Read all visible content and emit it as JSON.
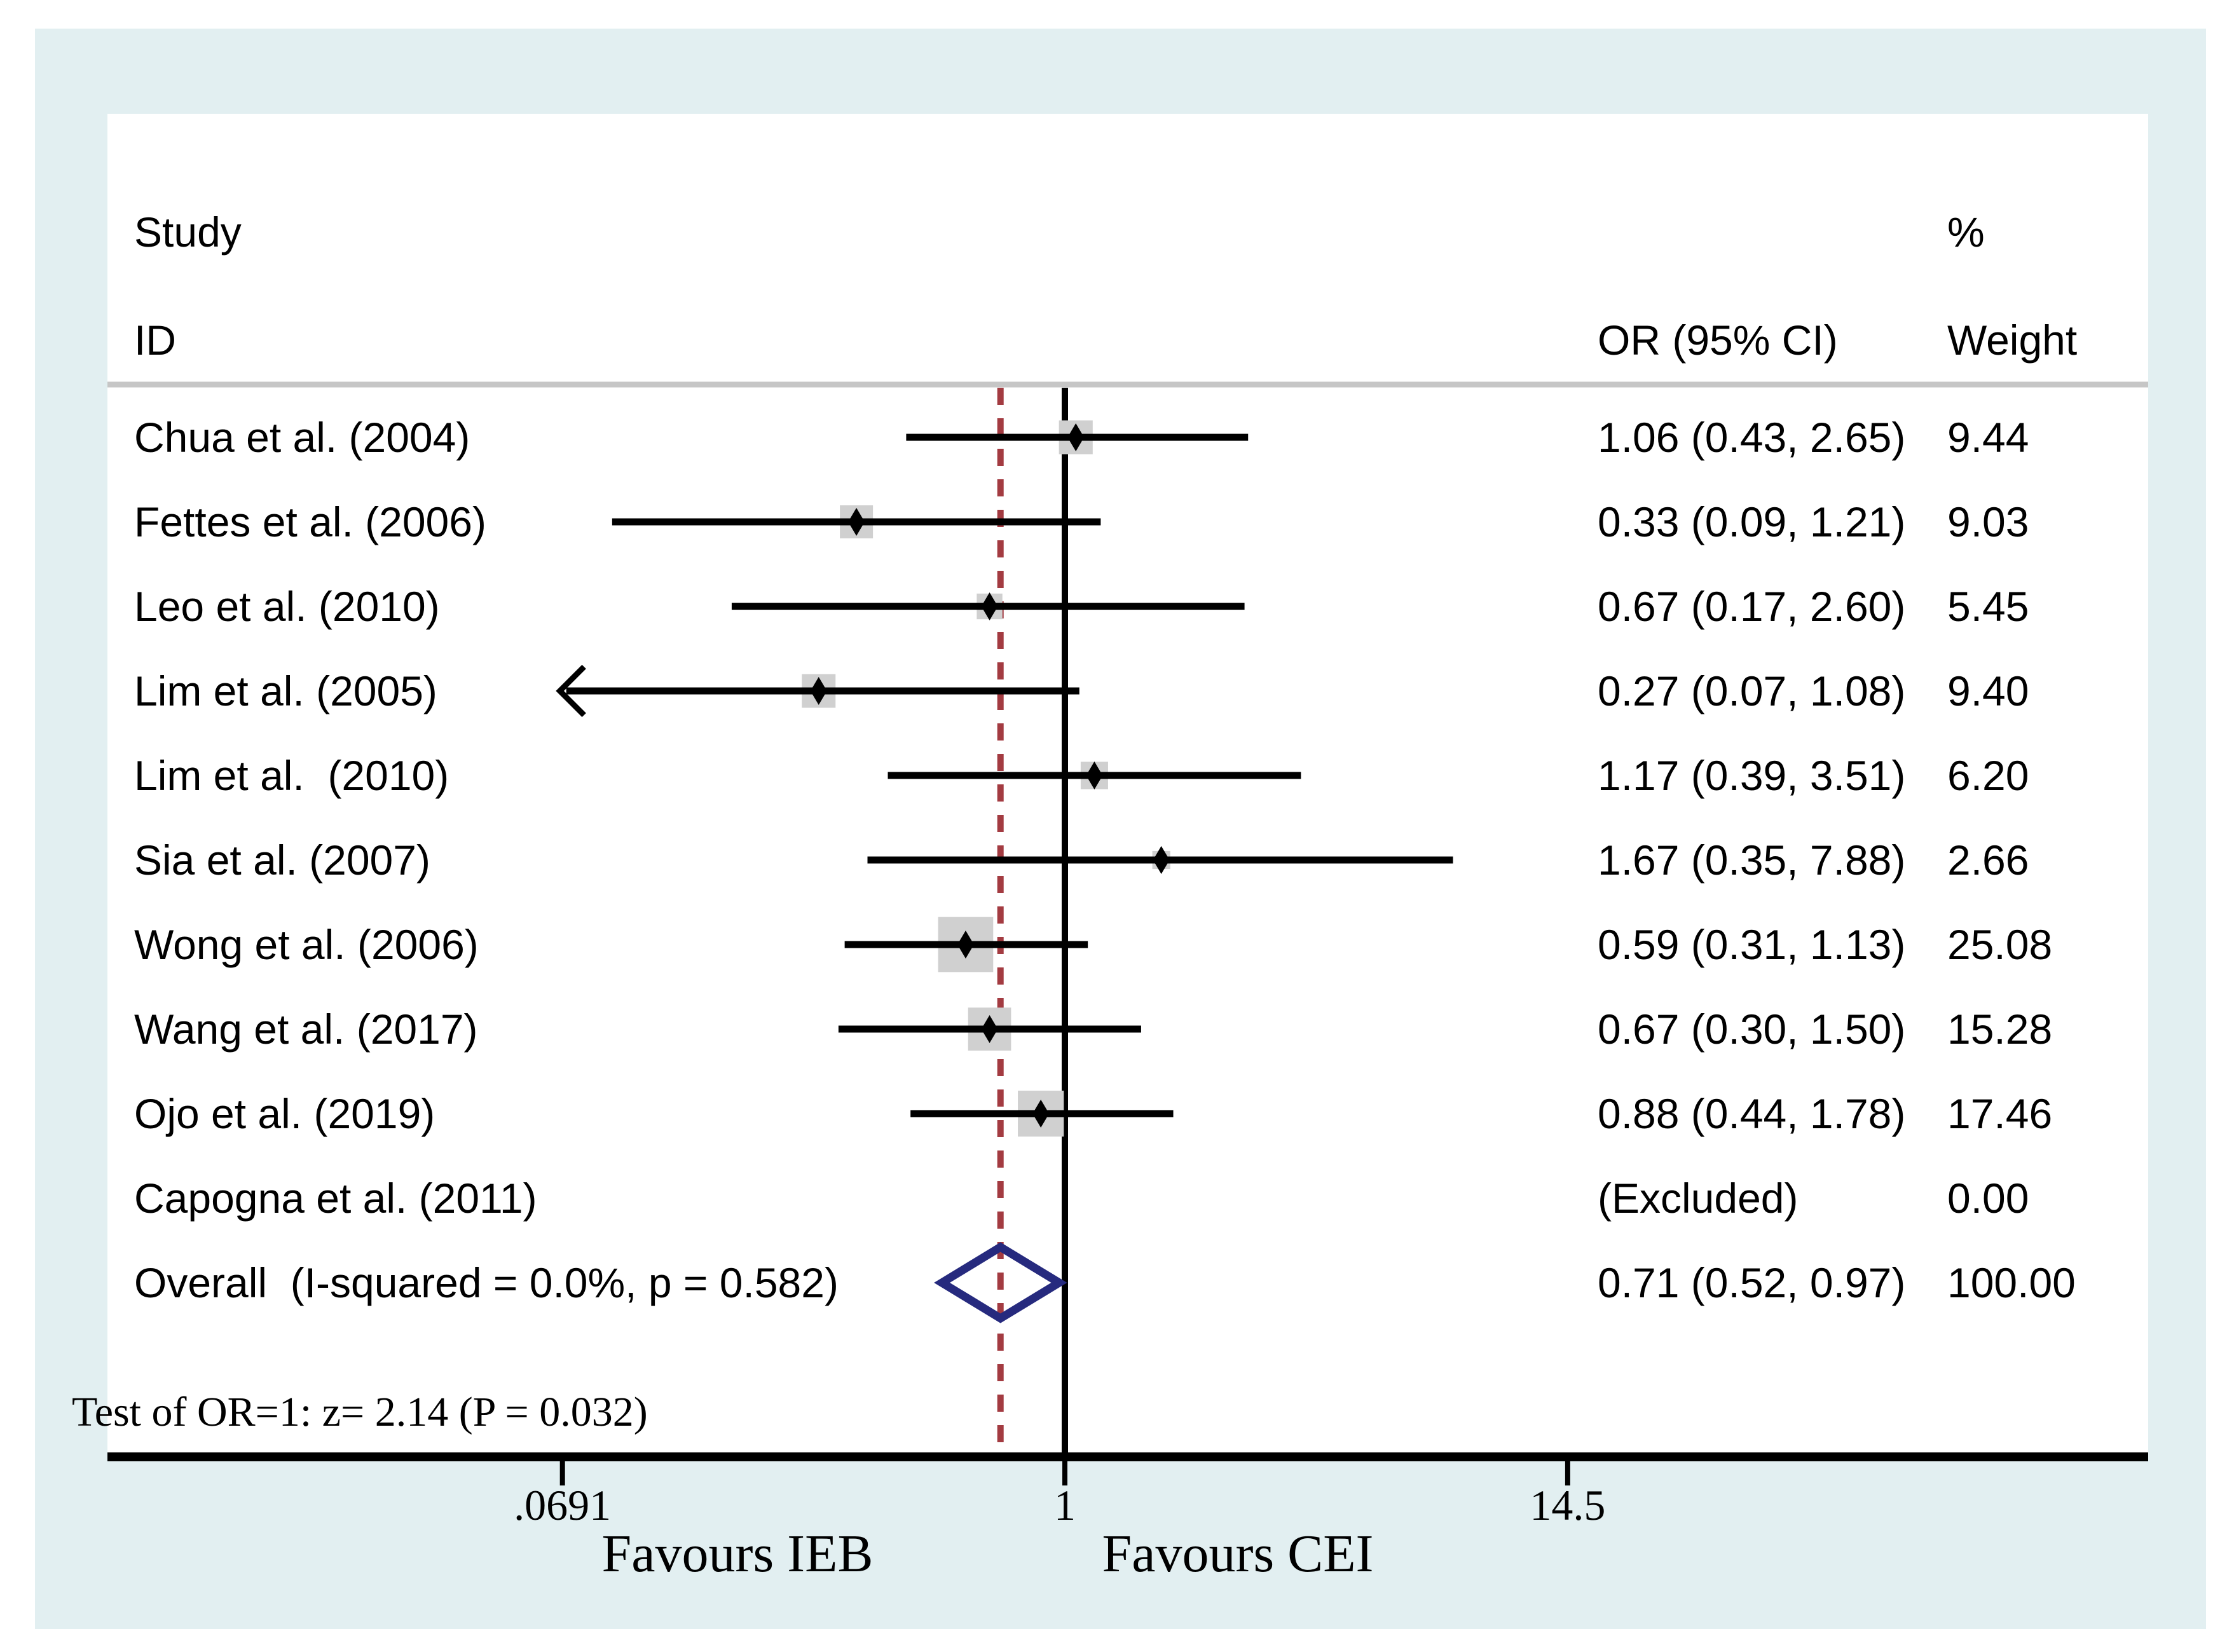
{
  "figure": {
    "columns": {
      "study_header_line1": "Study",
      "study_header_line2": "ID",
      "or_header": "OR (95% CI)",
      "weight_header_line1": "%",
      "weight_header_line2": "Weight"
    },
    "footnote": "Test of OR=1: z= 2.14 (P = 0.032)",
    "favours_left": "Favours IEB",
    "favours_right": "Favours CEI"
  },
  "colors": {
    "canvas_bg": "#ffffff",
    "panel_bg": "#e2eff1",
    "plot_bg": "#ffffff",
    "line": "#000000",
    "weight_box": "#d0d0d0",
    "header_divider": "#c6c6c6",
    "pooled_dashed_line": "#a33b41",
    "diamond_outline": "#262a7e",
    "text": "#000000"
  },
  "chart_data": {
    "type": "forest",
    "x_scale": "log10",
    "x_ticks": [
      {
        "value": 0.0691,
        "label": ".0691"
      },
      {
        "value": 1,
        "label": "1"
      },
      {
        "value": 14.5,
        "label": "14.5"
      }
    ],
    "null_line_value": 1,
    "pooled_line_value": 0.71,
    "studies": [
      {
        "label": "Chua et al. (2004)",
        "or": 1.06,
        "ci_low": 0.43,
        "ci_high": 2.65,
        "weight": 9.44,
        "or_text": "1.06 (0.43, 2.65)",
        "weight_text": "9.44"
      },
      {
        "label": "Fettes et al. (2006)",
        "or": 0.33,
        "ci_low": 0.09,
        "ci_high": 1.21,
        "weight": 9.03,
        "or_text": "0.33 (0.09, 1.21)",
        "weight_text": "9.03"
      },
      {
        "label": "Leo et al. (2010)",
        "or": 0.67,
        "ci_low": 0.17,
        "ci_high": 2.6,
        "weight": 5.45,
        "or_text": "0.67 (0.17, 2.60)",
        "weight_text": "5.45"
      },
      {
        "label": "Lim et al. (2005)",
        "or": 0.27,
        "ci_low": 0.07,
        "ci_high": 1.08,
        "weight": 9.4,
        "or_text": "0.27 (0.07, 1.08)",
        "weight_text": "9.40",
        "arrow_low": true
      },
      {
        "label": "Lim et al.  (2010)",
        "or": 1.17,
        "ci_low": 0.39,
        "ci_high": 3.51,
        "weight": 6.2,
        "or_text": "1.17 (0.39, 3.51)",
        "weight_text": "6.20"
      },
      {
        "label": "Sia et al. (2007)",
        "or": 1.67,
        "ci_low": 0.35,
        "ci_high": 7.88,
        "weight": 2.66,
        "or_text": "1.67 (0.35, 7.88)",
        "weight_text": "2.66"
      },
      {
        "label": "Wong et al. (2006)",
        "or": 0.59,
        "ci_low": 0.31,
        "ci_high": 1.13,
        "weight": 25.08,
        "or_text": "0.59 (0.31, 1.13)",
        "weight_text": "25.08"
      },
      {
        "label": "Wang et al. (2017)",
        "or": 0.67,
        "ci_low": 0.3,
        "ci_high": 1.5,
        "weight": 15.28,
        "or_text": "0.67 (0.30, 1.50)",
        "weight_text": "15.28"
      },
      {
        "label": "Ojo et al. (2019)",
        "or": 0.88,
        "ci_low": 0.44,
        "ci_high": 1.78,
        "weight": 17.46,
        "or_text": "0.88 (0.44, 1.78)",
        "weight_text": "17.46"
      },
      {
        "label": "Capogna et al. (2011)",
        "excluded": true,
        "or_text": "(Excluded)",
        "weight_text": "0.00"
      }
    ],
    "overall": {
      "label": "Overall  (I-squared = 0.0%, p = 0.582)",
      "or": 0.71,
      "ci_low": 0.52,
      "ci_high": 0.97,
      "or_text": "0.71 (0.52, 0.97)",
      "weight_text": "100.00"
    }
  }
}
